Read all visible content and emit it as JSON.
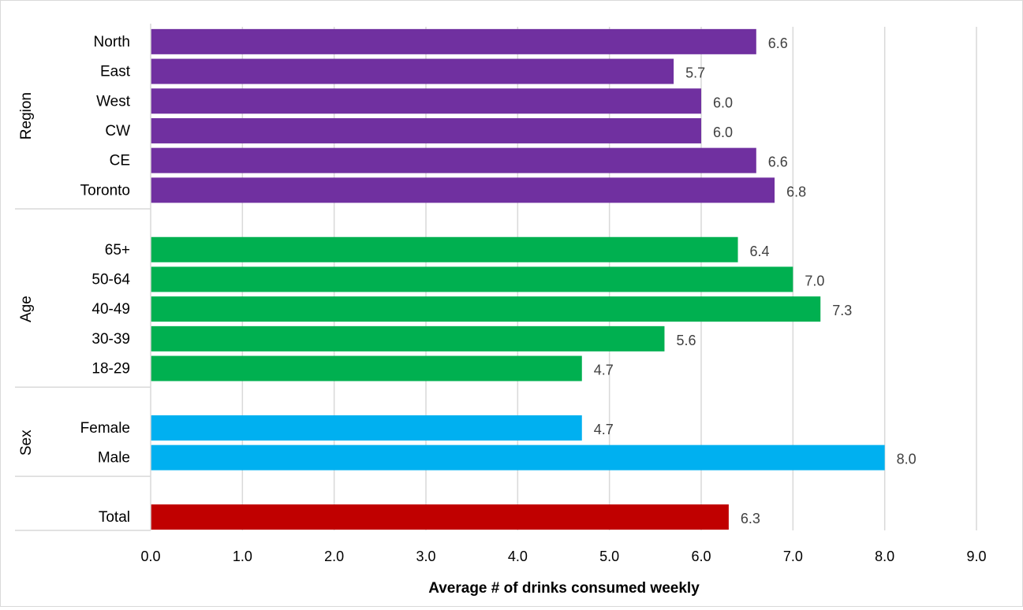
{
  "chart_data": {
    "type": "bar",
    "orientation": "horizontal",
    "xlabel": "Average # of drinks consumed weekly",
    "xlim": [
      0,
      9
    ],
    "x_ticks": [
      "0.0",
      "1.0",
      "2.0",
      "3.0",
      "4.0",
      "5.0",
      "6.0",
      "7.0",
      "8.0",
      "9.0"
    ],
    "grid": "vertical",
    "groups": [
      {
        "name": "Region",
        "color": "#7030a0",
        "categories": [
          "North",
          "East",
          "West",
          "CW",
          "CE",
          "Toronto"
        ],
        "values": [
          6.6,
          5.7,
          6.0,
          6.0,
          6.6,
          6.8
        ],
        "labels": [
          "6.6",
          "5.7",
          "6.0",
          "6.0",
          "6.6",
          "6.8"
        ]
      },
      {
        "name": "Age",
        "color": "#00b050",
        "categories": [
          "65+",
          "50-64",
          "40-49",
          "30-39",
          "18-29"
        ],
        "values": [
          6.4,
          7.0,
          7.3,
          5.6,
          4.7
        ],
        "labels": [
          "6.4",
          "7.0",
          "7.3",
          "5.6",
          "4.7"
        ]
      },
      {
        "name": "Sex",
        "color": "#00b0f0",
        "categories": [
          "Female",
          "Male"
        ],
        "values": [
          4.7,
          8.0
        ],
        "labels": [
          "4.7",
          "8.0"
        ]
      },
      {
        "name": "",
        "color": "#c00000",
        "categories": [
          "Total"
        ],
        "values": [
          6.3
        ],
        "labels": [
          "6.3"
        ]
      }
    ]
  }
}
